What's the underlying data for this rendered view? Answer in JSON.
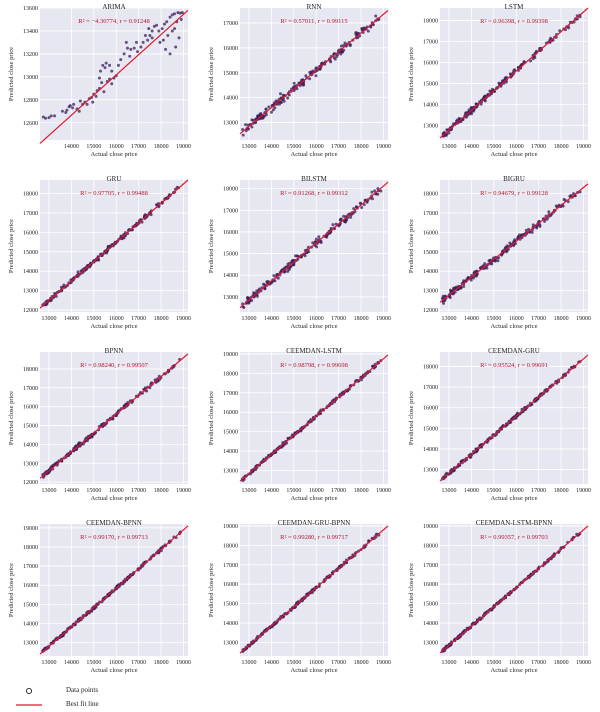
{
  "style": {
    "panel_bg": "#e7e7f2",
    "grid_color": "#ffffff",
    "point_color": "#3b1d5a",
    "line_color": "#e2192e",
    "annotation_color": "#b5172b",
    "text_color": "#222222"
  },
  "legend": {
    "points_label": "Data points",
    "line_label": "Best fit line"
  },
  "chart_data": [
    {
      "type": "scatter",
      "title": "ARIMA",
      "r2_text": "R² = −4.30774, r = 0.91248",
      "xlabel": "Actual close price",
      "ylabel": "Predicted close price",
      "xlim": [
        12600,
        19200
      ],
      "ylim": [
        12450,
        13600
      ],
      "xticks": [
        14000,
        15000,
        16000,
        17000,
        18000,
        19000
      ],
      "yticks": [
        12600,
        12800,
        13000,
        13200,
        13400,
        13600
      ],
      "fit_line": {
        "x": [
          12600,
          19200
        ],
        "y": [
          12420,
          13580
        ]
      },
      "points": [
        [
          12750,
          12650
        ],
        [
          12850,
          12640
        ],
        [
          13000,
          12645
        ],
        [
          13100,
          12660
        ],
        [
          13250,
          12660
        ],
        [
          13600,
          12700
        ],
        [
          13750,
          12690
        ],
        [
          13800,
          12710
        ],
        [
          13900,
          12740
        ],
        [
          14050,
          12730
        ],
        [
          14100,
          12760
        ],
        [
          14250,
          12720
        ],
        [
          14350,
          12700
        ],
        [
          14500,
          12760
        ],
        [
          14600,
          12780
        ],
        [
          14700,
          12760
        ],
        [
          14800,
          12810
        ],
        [
          14900,
          12820
        ],
        [
          15000,
          12850
        ],
        [
          15100,
          12830
        ],
        [
          15150,
          12880
        ],
        [
          15250,
          12900
        ],
        [
          15350,
          12950
        ],
        [
          15250,
          12990
        ],
        [
          15300,
          13050
        ],
        [
          15400,
          13100
        ],
        [
          15500,
          13080
        ],
        [
          15550,
          13120
        ],
        [
          15700,
          13100
        ],
        [
          15800,
          13050
        ],
        [
          15700,
          12980
        ],
        [
          15600,
          12960
        ],
        [
          15800,
          12940
        ],
        [
          16000,
          13010
        ],
        [
          16100,
          13100
        ],
        [
          16200,
          13150
        ],
        [
          16350,
          13200
        ],
        [
          16500,
          13250
        ],
        [
          16450,
          13300
        ],
        [
          16650,
          13240
        ],
        [
          16800,
          13250
        ],
        [
          16950,
          13220
        ],
        [
          17100,
          13260
        ],
        [
          17200,
          13300
        ],
        [
          17400,
          13320
        ],
        [
          17500,
          13360
        ],
        [
          17600,
          13400
        ],
        [
          17700,
          13440
        ],
        [
          17800,
          13450
        ],
        [
          17900,
          13400
        ],
        [
          18050,
          13420
        ],
        [
          18150,
          13460
        ],
        [
          18250,
          13480
        ],
        [
          18400,
          13520
        ],
        [
          18500,
          13540
        ],
        [
          18600,
          13550
        ],
        [
          18750,
          13560
        ],
        [
          18850,
          13555
        ],
        [
          18950,
          13560
        ],
        [
          18900,
          13500
        ],
        [
          18700,
          13480
        ],
        [
          18500,
          13400
        ],
        [
          18300,
          13360
        ],
        [
          18100,
          13320
        ],
        [
          17950,
          13300
        ],
        [
          18200,
          13240
        ],
        [
          18400,
          13200
        ],
        [
          18650,
          13260
        ],
        [
          18800,
          13340
        ],
        [
          18600,
          13420
        ],
        [
          17600,
          13340
        ],
        [
          17300,
          13360
        ],
        [
          17450,
          13420
        ],
        [
          16900,
          13300
        ],
        [
          16600,
          13180
        ],
        [
          15900,
          12990
        ],
        [
          15450,
          12870
        ],
        [
          14950,
          12780
        ],
        [
          14400,
          12790
        ],
        [
          13950,
          12750
        ]
      ]
    },
    {
      "type": "scatter",
      "title": "RNN",
      "r2_text": "R² = 0.57011, r = 0.99115",
      "xlabel": "Actual close price",
      "ylabel": "Predicted close price",
      "xlim": [
        12600,
        19200
      ],
      "ylim": [
        12300,
        17600
      ],
      "xticks": [
        13000,
        14000,
        15000,
        16000,
        17000,
        18000,
        19000
      ],
      "yticks": [
        13000,
        14000,
        15000,
        16000,
        17000
      ],
      "fit_line": {
        "x": [
          12600,
          19200
        ],
        "y": [
          12550,
          17500
        ]
      },
      "noise": 170
    },
    {
      "type": "scatter",
      "title": "LSTM",
      "r2_text": "R² = 0.96398, r = 0.99398",
      "xlabel": "Actual close price",
      "ylabel": "Predicted close price",
      "xlim": [
        12600,
        19200
      ],
      "ylim": [
        12300,
        18600
      ],
      "xticks": [
        13000,
        14000,
        15000,
        16000,
        17000,
        18000,
        19000
      ],
      "yticks": [
        13000,
        14000,
        15000,
        16000,
        17000,
        18000
      ],
      "fit_line": {
        "x": [
          12600,
          19200
        ],
        "y": [
          12400,
          18600
        ]
      },
      "noise": 130
    },
    {
      "type": "scatter",
      "title": "GRU",
      "r2_text": "R² = 0.97705, r = 0.99488",
      "xlabel": "Actual close price",
      "ylabel": "Predicted close price",
      "xlim": [
        12600,
        19200
      ],
      "ylim": [
        11900,
        18700
      ],
      "xticks": [
        13000,
        14000,
        15000,
        16000,
        17000,
        18000,
        19000
      ],
      "yticks": [
        12000,
        13000,
        14000,
        15000,
        16000,
        17000,
        18000
      ],
      "fit_line": {
        "x": [
          12600,
          19200
        ],
        "y": [
          12100,
          18700
        ]
      },
      "noise": 110
    },
    {
      "type": "scatter",
      "title": "BILSTM",
      "r2_text": "R² = 0.91268, r = 0.99312",
      "xlabel": "Actual close price",
      "ylabel": "Predicted close price",
      "xlim": [
        12600,
        19200
      ],
      "ylim": [
        12300,
        18400
      ],
      "xticks": [
        13000,
        14000,
        15000,
        16000,
        17000,
        18000,
        19000
      ],
      "yticks": [
        13000,
        14000,
        15000,
        16000,
        17000,
        18000
      ],
      "fit_line": {
        "x": [
          12600,
          19200
        ],
        "y": [
          12500,
          18300
        ]
      },
      "noise": 150
    },
    {
      "type": "scatter",
      "title": "BIGRU",
      "r2_text": "R² = 0.94679, r = 0.99128",
      "xlabel": "Actual close price",
      "ylabel": "Predicted close price",
      "xlim": [
        12600,
        19200
      ],
      "ylim": [
        11900,
        18700
      ],
      "xticks": [
        13000,
        14000,
        15000,
        16000,
        17000,
        18000,
        19000
      ],
      "yticks": [
        12000,
        13000,
        14000,
        15000,
        16000,
        17000,
        18000
      ],
      "fit_line": {
        "x": [
          12600,
          19200
        ],
        "y": [
          12400,
          18500
        ]
      },
      "noise": 170
    },
    {
      "type": "scatter",
      "title": "BPNN",
      "r2_text": "R² = 0.98240, r = 0.99507",
      "xlabel": "Actual close price",
      "ylabel": "Predicted close price",
      "xlim": [
        12600,
        19200
      ],
      "ylim": [
        11900,
        18900
      ],
      "xticks": [
        13000,
        14000,
        15000,
        16000,
        17000,
        18000,
        19000
      ],
      "yticks": [
        12000,
        13000,
        14000,
        15000,
        16000,
        17000,
        18000
      ],
      "fit_line": {
        "x": [
          12600,
          19200
        ],
        "y": [
          12200,
          18800
        ]
      },
      "noise": 100
    },
    {
      "type": "scatter",
      "title": "CEEMDAN-LSTM",
      "r2_text": "R² = 0.98798, r = 0.99698",
      "xlabel": "Actual close price",
      "ylabel": "Predicted close price",
      "xlim": [
        12600,
        19200
      ],
      "ylim": [
        12300,
        19100
      ],
      "xticks": [
        13000,
        14000,
        15000,
        16000,
        17000,
        18000,
        19000
      ],
      "yticks": [
        13000,
        14000,
        15000,
        16000,
        17000,
        18000,
        19000
      ],
      "fit_line": {
        "x": [
          12600,
          19200
        ],
        "y": [
          12450,
          18950
        ]
      },
      "noise": 80
    },
    {
      "type": "scatter",
      "title": "CEEMDAN-GRU",
      "r2_text": "R² = 0.95524, r = 0.99691",
      "xlabel": "Actual close price",
      "ylabel": "Predicted close price",
      "xlim": [
        12600,
        19200
      ],
      "ylim": [
        12300,
        18700
      ],
      "xticks": [
        13000,
        14000,
        15000,
        16000,
        17000,
        18000,
        19000
      ],
      "yticks": [
        13000,
        14000,
        15000,
        16000,
        17000,
        18000
      ],
      "fit_line": {
        "x": [
          12600,
          19200
        ],
        "y": [
          12450,
          18550
        ]
      },
      "noise": 80
    },
    {
      "type": "scatter",
      "title": "CEEMDAN-BPNN",
      "r2_text": "R² = 0.99170, r = 0.99713",
      "xlabel": "Actual close price",
      "ylabel": "Predicted close price",
      "xlim": [
        12600,
        19200
      ],
      "ylim": [
        12300,
        19200
      ],
      "xticks": [
        13000,
        14000,
        15000,
        16000,
        17000,
        18000,
        19000
      ],
      "yticks": [
        13000,
        14000,
        15000,
        16000,
        17000,
        18000,
        19000
      ],
      "fit_line": {
        "x": [
          12600,
          19200
        ],
        "y": [
          12400,
          19100
        ]
      },
      "noise": 70
    },
    {
      "type": "scatter",
      "title": "CEEMDAN-GRU-BPNN",
      "r2_text": "R² = 0.99280, r = 0.99717",
      "xlabel": "Actual close price",
      "ylabel": "Predicted close price",
      "xlim": [
        12600,
        19200
      ],
      "ylim": [
        12300,
        19100
      ],
      "xticks": [
        13000,
        14000,
        15000,
        16000,
        17000,
        18000,
        19000
      ],
      "yticks": [
        13000,
        14000,
        15000,
        16000,
        17000,
        18000,
        19000
      ],
      "fit_line": {
        "x": [
          12600,
          19200
        ],
        "y": [
          12450,
          19000
        ]
      },
      "noise": 65
    },
    {
      "type": "scatter",
      "title": "CEEMDAN-LSTM-BPNN",
      "r2_text": "R² = 0.99357, r = 0.99703",
      "xlabel": "Actual close price",
      "ylabel": "Predicted close price",
      "xlim": [
        12600,
        19200
      ],
      "ylim": [
        12300,
        19100
      ],
      "xticks": [
        13000,
        14000,
        15000,
        16000,
        17000,
        18000,
        19000
      ],
      "yticks": [
        13000,
        14000,
        15000,
        16000,
        17000,
        18000,
        19000
      ],
      "fit_line": {
        "x": [
          12600,
          19200
        ],
        "y": [
          12450,
          19000
        ]
      },
      "noise": 65
    }
  ]
}
